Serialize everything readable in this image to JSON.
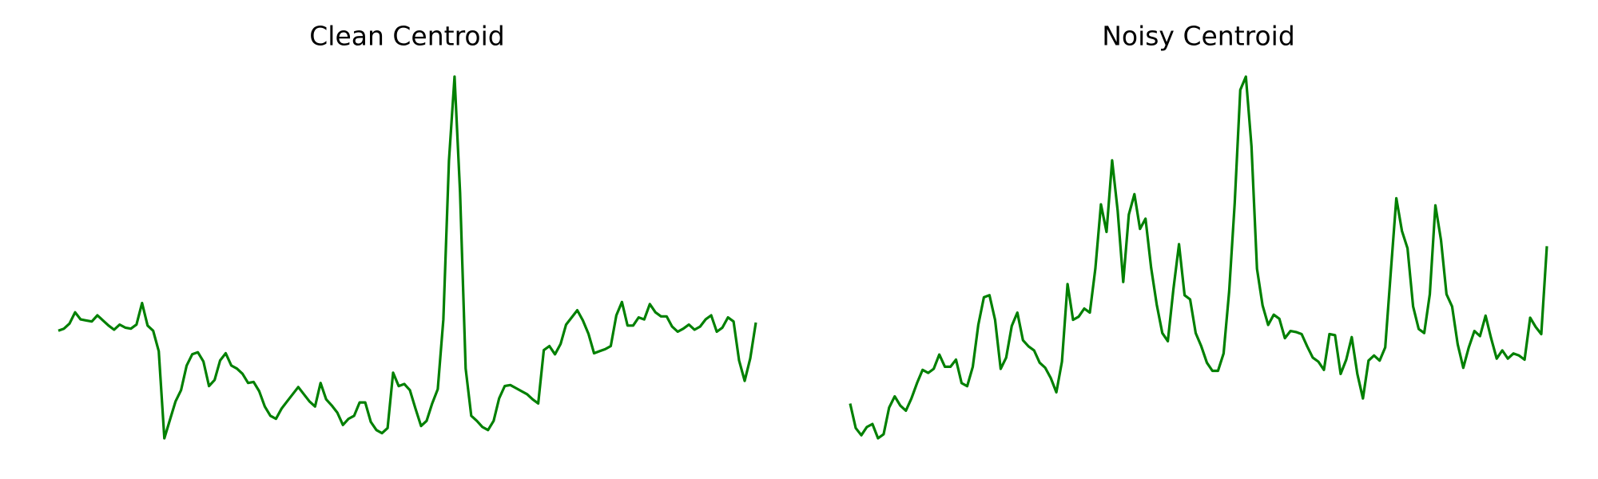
{
  "chart_data": [
    {
      "type": "line",
      "title": "Clean Centroid",
      "color": "#008000",
      "values": [
        107,
        109,
        114,
        125,
        118,
        117,
        116,
        122,
        117,
        112,
        108,
        113,
        110,
        109,
        113,
        134,
        112,
        107,
        87,
        2,
        20,
        38,
        49,
        73,
        84,
        86,
        77,
        53,
        59,
        78,
        85,
        73,
        70,
        65,
        56,
        57,
        48,
        33,
        24,
        21,
        31,
        38,
        45,
        52,
        45,
        38,
        33,
        56,
        40,
        34,
        27,
        15,
        21,
        24,
        37,
        37,
        18,
        10,
        7,
        12,
        66,
        53,
        55,
        49,
        31,
        14,
        19,
        36,
        50,
        118,
        273,
        355,
        242,
        70,
        24,
        19,
        13,
        10,
        19,
        41,
        53,
        54,
        51,
        48,
        45,
        40,
        36,
        88,
        92,
        84,
        94,
        113,
        120,
        127,
        117,
        104,
        85,
        87,
        89,
        92,
        122,
        135,
        112,
        112,
        120,
        118,
        133,
        125,
        121,
        121,
        111,
        106,
        109,
        113,
        108,
        111,
        118,
        122,
        106,
        110,
        120,
        116,
        78,
        58,
        80,
        115
      ]
    },
    {
      "type": "line",
      "title": "Noisy Centroid",
      "color": "#008000",
      "values": [
        35,
        11,
        4,
        12,
        15,
        1,
        5,
        31,
        42,
        33,
        28,
        40,
        55,
        68,
        65,
        69,
        83,
        71,
        71,
        78,
        55,
        52,
        71,
        112,
        139,
        141,
        117,
        69,
        80,
        111,
        124,
        97,
        91,
        87,
        75,
        70,
        60,
        46,
        76,
        152,
        117,
        120,
        128,
        124,
        167,
        230,
        203,
        273,
        224,
        154,
        220,
        240,
        206,
        216,
        168,
        132,
        104,
        96,
        147,
        191,
        141,
        137,
        104,
        91,
        75,
        67,
        67,
        84,
        145,
        231,
        342,
        355,
        287,
        167,
        131,
        112,
        122,
        118,
        99,
        106,
        105,
        103,
        91,
        80,
        76,
        68,
        103,
        102,
        64,
        78,
        100,
        64,
        40,
        77,
        82,
        77,
        90,
        164,
        236,
        204,
        187,
        130,
        108,
        104,
        142,
        229,
        195,
        142,
        130,
        93,
        70,
        90,
        106,
        101,
        121,
        99,
        79,
        87,
        79,
        84,
        82,
        78,
        119,
        110,
        103,
        189
      ]
    }
  ]
}
